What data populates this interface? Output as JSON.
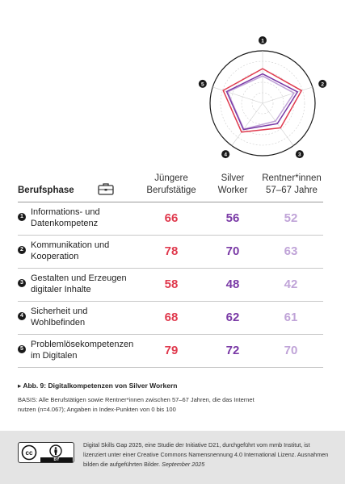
{
  "chart_data": {
    "type": "radar",
    "axes": [
      {
        "number": "1",
        "label": "Informations- und Datenkompetenz"
      },
      {
        "number": "2",
        "label": "Kommunikation und Kooperation"
      },
      {
        "number": "3",
        "label": "Gestalten und Erzeugen digitaler Inhalte"
      },
      {
        "number": "4",
        "label": "Sicherheit und Wohlbefinden"
      },
      {
        "number": "5",
        "label": "Problemlösekompetenzen im Digitalen"
      }
    ],
    "series": [
      {
        "name": "Jüngere Berufstätige",
        "color": "#e03a4e",
        "values": [
          66,
          78,
          58,
          68,
          79
        ]
      },
      {
        "name": "Silver Worker",
        "color": "#7a3aa6",
        "values": [
          56,
          70,
          48,
          62,
          72
        ]
      },
      {
        "name": "Rentner*innen 57–67 Jahre",
        "color": "#c0a4d8",
        "values": [
          52,
          63,
          42,
          61,
          70
        ]
      }
    ],
    "range": [
      0,
      100
    ],
    "rings": 5
  },
  "table": {
    "phase_header": "Berufsphase",
    "columns": [
      {
        "line1": "Jüngere",
        "line2": "Berufstätige"
      },
      {
        "line1": "Silver",
        "line2": "Worker"
      },
      {
        "line1": "Rentner*innen",
        "line2": "57–67 Jahre"
      }
    ],
    "rows": [
      {
        "num": "1",
        "line1": "Informations- und",
        "line2": "Datenkompetenz",
        "v": [
          66,
          56,
          52
        ]
      },
      {
        "num": "2",
        "line1": "Kommunikation und",
        "line2": "Kooperation",
        "v": [
          78,
          70,
          63
        ]
      },
      {
        "num": "3",
        "line1": "Gestalten und Erzeugen",
        "line2": "digitaler Inhalte",
        "v": [
          58,
          48,
          42
        ]
      },
      {
        "num": "4",
        "line1": "Sicherheit und",
        "line2": "Wohlbefinden",
        "v": [
          68,
          62,
          61
        ]
      },
      {
        "num": "5",
        "line1": "Problemlösekompetenzen",
        "line2": "im Digitalen",
        "v": [
          79,
          72,
          70
        ]
      }
    ]
  },
  "caption": "▸ Abb. 9: Digitalkompetenzen von Silver Workern",
  "basis": "BASIS: Alle Berufstätigen sowie Rentner*innen zwischen 57–67 Jahren, die das Internet nutzen (n=4.067); Angaben in Index-Punkten von 0 bis 100",
  "footer": {
    "cc_badge": "BY",
    "license_text": "Digital Skills Gap 2025, eine Studie der Initiative D21, durchgeführt vom mmb Institut, ist lizenziert unter einer Creative Commons Namensnennung 4.0 International Lizenz. Ausnahmen bilden die aufgeführten Bilder.",
    "license_date": "September 2025"
  }
}
